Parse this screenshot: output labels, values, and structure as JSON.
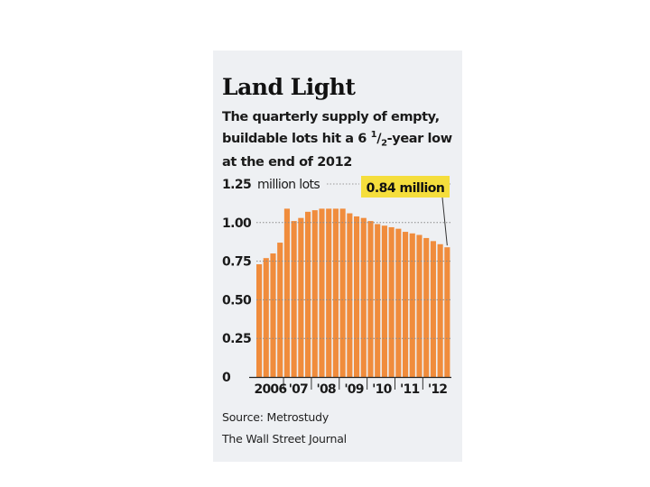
{
  "chart_data": {
    "type": "bar",
    "title": "Land Light",
    "subtitle_parts": [
      "The quarterly supply of empty, buildable lots hit a ",
      "6 ",
      "1",
      "/",
      "2",
      "-year low at the end of 2012"
    ],
    "ylabel": "million lots",
    "ylim": [
      0,
      1.25
    ],
    "yticks": [
      {
        "value": 0,
        "label": "0"
      },
      {
        "value": 0.25,
        "label": "0.25"
      },
      {
        "value": 0.5,
        "label": "0.50"
      },
      {
        "value": 0.75,
        "label": "0.75"
      },
      {
        "value": 1.0,
        "label": "1.00"
      },
      {
        "value": 1.25,
        "label": "1.25"
      }
    ],
    "xticks": [
      {
        "index": 0,
        "label": "2006"
      },
      {
        "index": 4,
        "label": "'07"
      },
      {
        "index": 8,
        "label": "'08"
      },
      {
        "index": 12,
        "label": "'09"
      },
      {
        "index": 16,
        "label": "'10"
      },
      {
        "index": 20,
        "label": "'11"
      },
      {
        "index": 24,
        "label": "'12"
      }
    ],
    "categories": [
      "2006 Q1",
      "2006 Q2",
      "2006 Q3",
      "2006 Q4",
      "2007 Q1",
      "2007 Q2",
      "2007 Q3",
      "2007 Q4",
      "2008 Q1",
      "2008 Q2",
      "2008 Q3",
      "2008 Q4",
      "2009 Q1",
      "2009 Q2",
      "2009 Q3",
      "2009 Q4",
      "2010 Q1",
      "2010 Q2",
      "2010 Q3",
      "2010 Q4",
      "2011 Q1",
      "2011 Q2",
      "2011 Q3",
      "2011 Q4",
      "2012 Q1",
      "2012 Q2",
      "2012 Q3",
      "2012 Q4"
    ],
    "values": [
      0.73,
      0.77,
      0.8,
      0.87,
      1.09,
      1.01,
      1.03,
      1.07,
      1.08,
      1.09,
      1.09,
      1.09,
      1.09,
      1.06,
      1.04,
      1.03,
      1.01,
      0.99,
      0.98,
      0.97,
      0.96,
      0.94,
      0.93,
      0.92,
      0.9,
      0.88,
      0.86,
      0.84
    ],
    "annotation": "0.84 million",
    "bar_color": "#f08c3c",
    "annotation_color": "#f5de3c"
  },
  "source": "Source: Metrostudy",
  "credit": "The Wall Street Journal"
}
